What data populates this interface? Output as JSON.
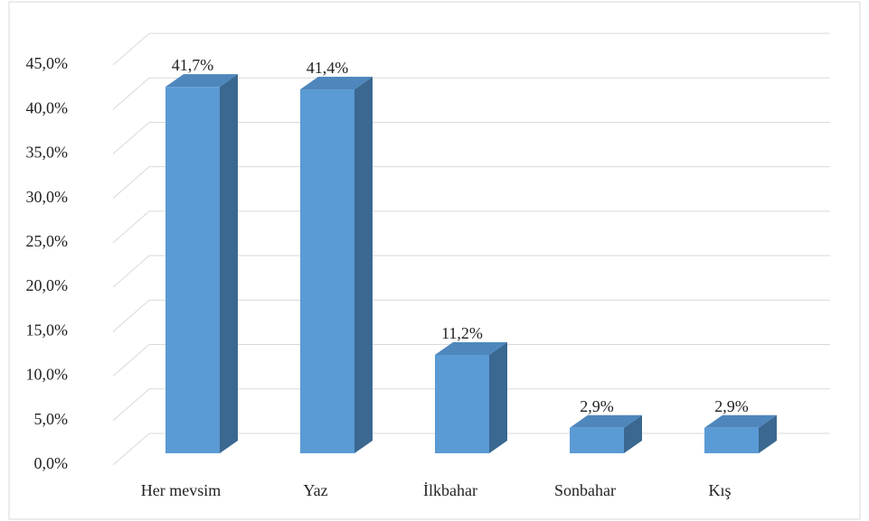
{
  "chart_data": {
    "type": "bar3d",
    "categories": [
      "Her mevsim",
      "Yaz",
      "İlkbahar",
      "Sonbahar",
      "Kış"
    ],
    "values": [
      41.7,
      41.4,
      11.2,
      2.9,
      2.9
    ],
    "value_labels": [
      "41,7%",
      "41,4%",
      "11,2%",
      "2,9%",
      "2,9%"
    ],
    "color": "#5b9bd5",
    "ylim": [
      0,
      45
    ],
    "yticks": [
      {
        "value": 0,
        "label": "0,0%"
      },
      {
        "value": 5,
        "label": "5,0%"
      },
      {
        "value": 10,
        "label": "10,0%"
      },
      {
        "value": 15,
        "label": "15,0%"
      },
      {
        "value": 20,
        "label": "20,0%"
      },
      {
        "value": 25,
        "label": "25,0%"
      },
      {
        "value": 30,
        "label": "30,0%"
      },
      {
        "value": 35,
        "label": "35,0%"
      },
      {
        "value": 40,
        "label": "40,0%"
      },
      {
        "value": 45,
        "label": "45,0%"
      }
    ],
    "grid": true
  }
}
